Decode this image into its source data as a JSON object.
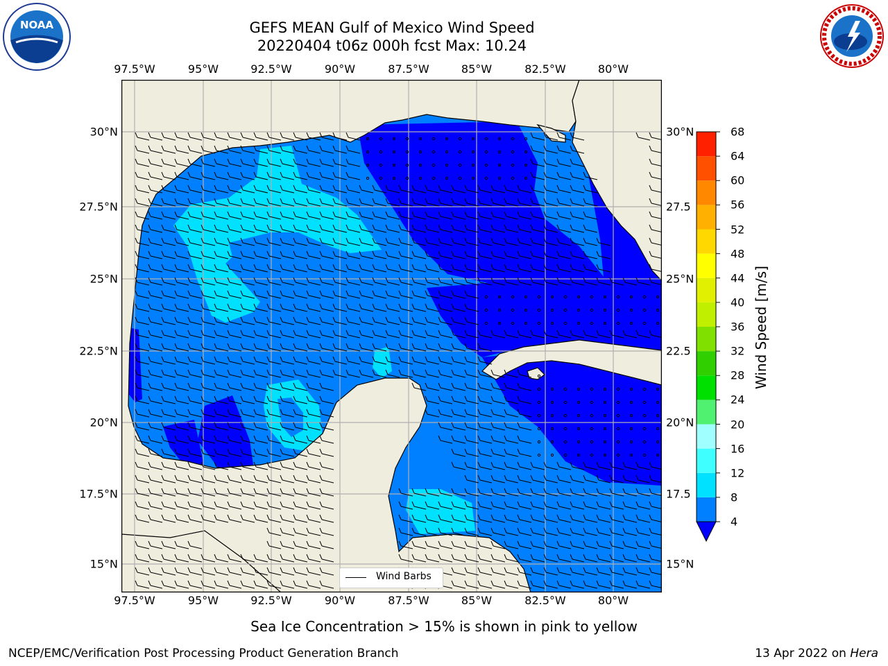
{
  "title": {
    "line1": "GEFS MEAN Gulf of Mexico Wind Speed",
    "line2": "20220404 t06z 000h fcst   Max: 10.24"
  },
  "axes": {
    "lon_labels": [
      "97.5°W",
      "95°W",
      "92.5°W",
      "90°W",
      "87.5°W",
      "85°W",
      "82.5°W",
      "80°W"
    ],
    "lat_labels_left": [
      "30°N",
      "27.5°N",
      "25°N",
      "22.5°N",
      "20°N",
      "17.5°N",
      "15°N"
    ],
    "lat_labels_right": [
      "30°N",
      "27.5",
      "25°N",
      "22.5",
      "20°N",
      "17.5",
      "15°N"
    ]
  },
  "map": {
    "legend_label": "Wind Barbs",
    "land_color": "#efedde",
    "grid_color": "#b0b0b0"
  },
  "colorbar": {
    "title": "Wind Speed [m/s]",
    "ticks": [
      "68",
      "64",
      "60",
      "56",
      "52",
      "48",
      "44",
      "40",
      "36",
      "32",
      "28",
      "24",
      "20",
      "16",
      "12",
      "8",
      "4"
    ],
    "colors": [
      "#0000ff",
      "#0080ff",
      "#00e0ff",
      "#40ffff",
      "#a0ffff",
      "#50f070",
      "#00e000",
      "#30d000",
      "#80e000",
      "#c0f000",
      "#e0f000",
      "#ffff00",
      "#ffd800",
      "#ffb000",
      "#ff8800",
      "#ff5000",
      "#ff2000",
      "#ff0000"
    ]
  },
  "subtitle": "Sea Ice Concentration > 15% is shown in pink to yellow",
  "footer": {
    "left": "NCEP/EMC/Verification Post Processing Product Generation Branch",
    "right_date": "13 Apr 2022 on ",
    "right_host": "Hera"
  },
  "logos": {
    "left_name": "noaa-logo",
    "right_name": "nws-logo"
  }
}
